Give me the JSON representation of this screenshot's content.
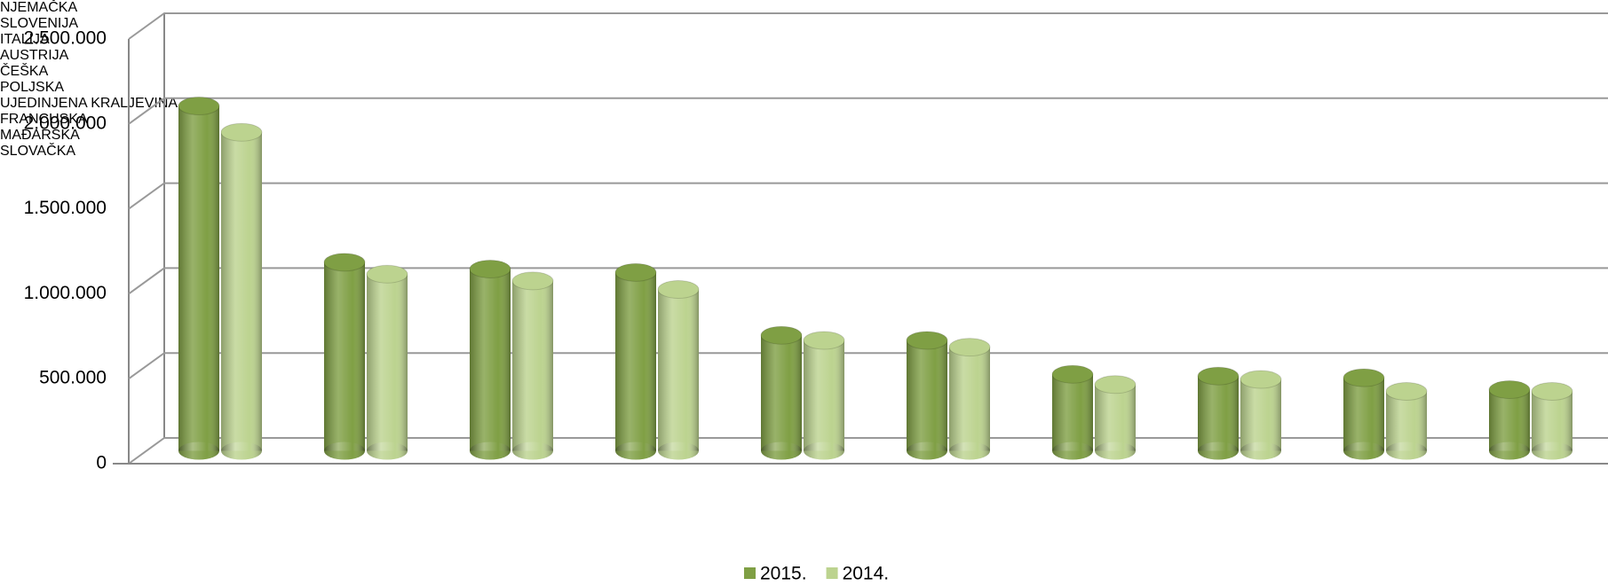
{
  "chart_data": {
    "type": "bar3d",
    "categories": [
      "NJEMAČKA",
      "SLOVENIJA",
      "ITALIJA",
      "AUSTRIJA",
      "ČEŠKA",
      "POLJSKA",
      "UJEDINJENA KRALJEVINA",
      "FRANCUSKA",
      "MAĐARSKA",
      "SLOVAČKA"
    ],
    "series": [
      {
        "name": "2015.",
        "color": "#7f9f44",
        "values": [
          2030000,
          1110000,
          1070000,
          1050000,
          680000,
          650000,
          450000,
          440000,
          430000,
          360000
        ]
      },
      {
        "name": "2014.",
        "color": "#bcd38f",
        "values": [
          1875000,
          1040000,
          1000000,
          950000,
          650000,
          610000,
          390000,
          420000,
          350000,
          350000
        ]
      }
    ],
    "ylim": [
      0,
      2500000
    ],
    "yticks": [
      0,
      {
        "value": 500000,
        "label": "500.000"
      },
      {
        "value": 1000000,
        "label": "1.000.000"
      },
      {
        "value": 1500000,
        "label": "1.500.000"
      },
      {
        "value": 2000000,
        "label": "2.000.000"
      },
      {
        "value": 2500000,
        "label": "2.500.000"
      }
    ],
    "grid": true,
    "legend": "bottom"
  }
}
